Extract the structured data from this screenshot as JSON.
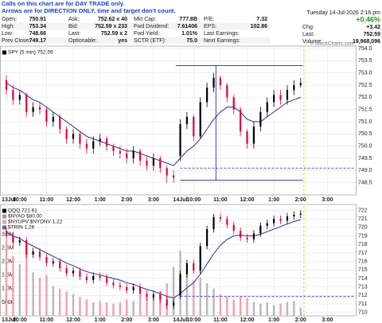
{
  "notes": [
    "Calls on this chart are for DAY TRADE only.",
    "Arrows are for DIRECTION ONLY, time and target don't count."
  ],
  "quote": {
    "date": "Tuesday 14-Jul-2026 2:16 pm",
    "pct_change": "+0.46%",
    "pct_color": "#1b9e1b",
    "grid": [
      [
        "Open:",
        "750.91",
        "Ask:",
        "752.62 x 40",
        "Mkt Cap:",
        "777.8B",
        "P/E:",
        "7.32"
      ],
      [
        "High:",
        "753.34",
        "Bid:",
        "752.59 x 233",
        "Fwd Dividend:",
        "7.61406",
        "EPS:",
        "102.86"
      ],
      [
        "Low:",
        "748.66",
        "Last:",
        "752.59 x 2",
        "Fwd Yield:",
        "1.01%",
        "Last Earnings:",
        null
      ],
      [
        "Prev Close:",
        "749.17",
        "Optionable:",
        "yes",
        "SCTR (ETF):",
        "75.0",
        "Next Earnings:",
        null
      ]
    ],
    "side": [
      [
        "Chg:",
        "+3.42"
      ],
      [
        "Last:",
        "752.59"
      ],
      [
        "Volume:",
        "19,968,096"
      ]
    ]
  },
  "watermark": "© StockCharts.com",
  "chart_data": [
    {
      "type": "candlestick",
      "legend": [
        {
          "name": "SPY (5 min) 752.59",
          "color": "#000000"
        }
      ],
      "x": [
        0,
        3,
        6,
        9,
        12,
        15,
        18,
        21,
        24,
        27,
        30,
        33,
        36,
        39,
        42,
        45,
        48,
        51,
        54,
        57,
        60,
        63,
        66,
        69,
        72,
        75,
        78,
        81,
        84,
        87,
        90,
        93,
        96,
        99,
        102,
        105,
        108,
        111,
        114,
        117,
        120,
        123,
        126,
        129,
        132
      ],
      "open": [
        752.7,
        752.3,
        751.9,
        752.1,
        751.4,
        751.6,
        751.5,
        751.0,
        751.2,
        750.7,
        750.3,
        750.5,
        750.1,
        749.9,
        750.2,
        750.3,
        750.0,
        749.8,
        749.7,
        749.5,
        749.8,
        749.4,
        749.2,
        749.5,
        749.1,
        748.8,
        749.6,
        750.9,
        751.2,
        750.4,
        751.8,
        752.4,
        752.8,
        752.5,
        752.0,
        751.5,
        750.6,
        750.1,
        750.8,
        751.4,
        751.8,
        752.1,
        751.9,
        752.3,
        752.5
      ],
      "high": [
        752.9,
        752.5,
        752.3,
        752.2,
        751.8,
        751.8,
        751.6,
        751.4,
        751.3,
        750.8,
        750.7,
        750.6,
        750.3,
        750.4,
        750.5,
        750.4,
        750.1,
        750.0,
        749.9,
        750.0,
        749.9,
        749.6,
        749.7,
        749.6,
        749.2,
        749.0,
        751.1,
        751.4,
        751.3,
        752.0,
        752.6,
        753.0,
        752.9,
        752.6,
        752.1,
        751.6,
        750.7,
        751.0,
        751.6,
        752.0,
        752.3,
        752.3,
        752.5,
        752.7,
        752.8
      ],
      "low": [
        752.1,
        751.7,
        751.7,
        751.2,
        751.2,
        751.3,
        750.8,
        750.8,
        750.5,
        750.1,
        750.1,
        749.9,
        749.7,
        749.7,
        750.0,
        749.8,
        749.6,
        749.5,
        749.3,
        749.3,
        749.2,
        749.0,
        749.0,
        748.9,
        748.5,
        748.5,
        749.4,
        750.7,
        750.2,
        750.3,
        751.6,
        752.2,
        752.3,
        751.8,
        751.3,
        750.4,
        749.9,
        749.9,
        750.6,
        751.2,
        751.6,
        751.7,
        751.7,
        752.1,
        752.4
      ],
      "close": [
        752.3,
        751.9,
        752.1,
        751.4,
        751.6,
        751.5,
        751.0,
        751.2,
        750.7,
        750.3,
        750.5,
        750.1,
        749.9,
        750.2,
        750.3,
        750.0,
        749.8,
        749.7,
        749.5,
        749.8,
        749.4,
        749.2,
        749.5,
        749.1,
        748.8,
        748.7,
        750.9,
        751.2,
        750.4,
        751.8,
        752.4,
        752.8,
        752.5,
        752.0,
        751.5,
        750.6,
        750.1,
        750.8,
        751.4,
        751.8,
        752.1,
        751.9,
        752.3,
        752.5,
        752.59
      ],
      "up_color": "#000000",
      "down_color": "#e0003c",
      "overlays": [
        {
          "type": "line",
          "color": "#2b2b9a",
          "values": [
            752.6,
            752.4,
            752.3,
            752.1,
            751.9,
            751.8,
            751.6,
            751.4,
            751.2,
            751.0,
            750.8,
            750.6,
            750.4,
            750.3,
            750.2,
            750.1,
            750.0,
            749.9,
            749.8,
            749.8,
            749.7,
            749.6,
            749.5,
            749.4,
            749.3,
            749.2,
            749.5,
            749.8,
            750.0,
            750.3,
            750.7,
            751.1,
            751.4,
            751.6,
            751.6,
            751.4,
            751.1,
            751.0,
            751.0,
            751.2,
            751.4,
            751.6,
            751.8,
            751.9,
            752.0
          ]
        }
      ],
      "xlim": [
        0,
        156
      ],
      "xticks": [
        {
          "value": 0,
          "label": "13Jul"
        },
        {
          "value": 6,
          "label": "10:00"
        },
        {
          "value": 18,
          "label": "11:00"
        },
        {
          "value": 30,
          "label": "12:00"
        },
        {
          "value": 42,
          "label": "1:00"
        },
        {
          "value": 54,
          "label": "2:00"
        },
        {
          "value": 66,
          "label": "3:00"
        },
        {
          "value": 78,
          "label": "14Jul"
        },
        {
          "value": 84,
          "label": "10:00"
        },
        {
          "value": 96,
          "label": "11:00"
        },
        {
          "value": 108,
          "label": "12:00"
        },
        {
          "value": 120,
          "label": "1:00"
        },
        {
          "value": 132,
          "label": "2:00"
        },
        {
          "value": 144,
          "label": "3:00"
        }
      ],
      "ylim": [
        748.0,
        754.1
      ],
      "yticks": [
        {
          "value": 748.5,
          "label": "748.5"
        },
        {
          "value": 749,
          "label": "749.0"
        },
        749.5,
        {
          "value": 750,
          "label": "750.0"
        },
        750.5,
        {
          "value": 751,
          "label": "751.0"
        },
        751.5,
        {
          "value": 752,
          "label": "752.0"
        },
        752.5,
        {
          "value": 753,
          "label": "753.0"
        },
        753.5,
        {
          "value": 754,
          "label": "754.0"
        }
      ],
      "grid": true,
      "hlines": [
        {
          "value": 753.3,
          "from": 76,
          "to": 133,
          "color": "#2b2b9a",
          "dashed": false
        },
        {
          "value": 748.6,
          "from": 78,
          "to": 133,
          "color": "#2b2b9a",
          "dashed": false
        },
        {
          "value": 749.1,
          "from": 78,
          "to": 156,
          "color": "#3a3aff",
          "dashed": true
        }
      ],
      "vlines": [
        {
          "value": 94,
          "from": 748.6,
          "to": 753.3,
          "color": "#2b2b9a",
          "dashed": false
        },
        {
          "value": 133.5,
          "color": "#f2c200",
          "dashed": true
        }
      ]
    },
    {
      "type": "candlestick",
      "legend": [
        {
          "name": "QQQ 721.61",
          "color": "#000000"
        },
        {
          "name": "$NYAD $80.00",
          "color": "#999999"
        },
        {
          "name": "$NYUPV:$NYDNV 1.22",
          "color": "#e8a0b0"
        },
        {
          "name": "$TRIN 1.26",
          "color": "#6060c0"
        }
      ],
      "x": [
        0,
        3,
        6,
        9,
        12,
        15,
        18,
        21,
        24,
        27,
        30,
        33,
        36,
        39,
        42,
        45,
        48,
        51,
        54,
        57,
        60,
        63,
        66,
        69,
        72,
        75,
        78,
        81,
        84,
        87,
        90,
        93,
        96,
        99,
        102,
        105,
        108,
        111,
        114,
        117,
        120,
        123,
        126,
        129,
        132
      ],
      "open": [
        719.6,
        719.0,
        718.2,
        718.5,
        716.8,
        717.2,
        716.5,
        715.8,
        716.0,
        715.2,
        714.6,
        714.9,
        714.2,
        713.8,
        714.3,
        714.1,
        713.5,
        713.2,
        713.0,
        712.6,
        713.0,
        712.2,
        711.8,
        712.1,
        711.5,
        710.8,
        712.0,
        714.5,
        715.8,
        714.9,
        717.8,
        719.8,
        721.2,
        721.0,
        720.3,
        719.6,
        718.8,
        718.6,
        719.3,
        720.2,
        720.5,
        721.0,
        720.8,
        721.3,
        721.5
      ],
      "high": [
        720.0,
        719.4,
        718.9,
        718.9,
        717.6,
        717.6,
        716.9,
        716.4,
        716.4,
        715.6,
        715.3,
        715.3,
        714.6,
        714.7,
        714.7,
        714.5,
        713.9,
        713.6,
        713.4,
        713.4,
        713.4,
        712.6,
        712.5,
        712.5,
        711.9,
        711.6,
        714.9,
        716.2,
        716.2,
        718.2,
        720.2,
        721.6,
        721.6,
        721.4,
        720.7,
        720.0,
        719.2,
        719.7,
        720.6,
        720.9,
        721.4,
        721.4,
        721.7,
        721.9,
        722.0
      ],
      "low": [
        718.6,
        717.8,
        717.8,
        716.4,
        716.4,
        716.1,
        715.4,
        715.4,
        714.8,
        714.2,
        714.2,
        713.8,
        713.4,
        713.4,
        713.7,
        713.1,
        712.8,
        712.6,
        712.2,
        712.2,
        711.8,
        711.4,
        711.4,
        711.1,
        710.4,
        710.4,
        711.6,
        714.1,
        714.5,
        714.5,
        717.4,
        719.4,
        720.6,
        719.9,
        719.2,
        718.4,
        718.2,
        718.2,
        718.9,
        719.8,
        720.1,
        720.4,
        720.4,
        720.9,
        721.1
      ],
      "close": [
        719.0,
        718.2,
        718.5,
        716.8,
        717.2,
        716.5,
        715.8,
        716.0,
        715.2,
        714.6,
        714.9,
        714.2,
        713.8,
        714.3,
        714.1,
        713.5,
        713.2,
        713.0,
        712.6,
        713.0,
        712.2,
        711.8,
        712.1,
        711.5,
        710.8,
        711.2,
        714.5,
        715.8,
        714.9,
        717.8,
        719.8,
        721.2,
        721.0,
        720.3,
        719.6,
        718.8,
        718.6,
        719.3,
        720.2,
        720.5,
        721.0,
        720.8,
        721.3,
        721.5,
        721.61
      ],
      "up_color": "#000000",
      "down_color": "#e0003c",
      "overlays": [
        {
          "type": "line",
          "color": "#2b2b9a",
          "values": [
            719.4,
            719.0,
            718.7,
            718.2,
            717.8,
            717.4,
            717.0,
            716.6,
            716.2,
            715.8,
            715.5,
            715.1,
            714.8,
            714.6,
            714.4,
            714.2,
            714.0,
            713.8,
            713.5,
            713.3,
            713.0,
            712.7,
            712.5,
            712.2,
            711.9,
            711.7,
            712.2,
            712.9,
            713.5,
            714.5,
            715.7,
            716.9,
            717.9,
            718.6,
            719.0,
            719.1,
            719.0,
            719.0,
            719.2,
            719.5,
            719.8,
            720.1,
            720.4,
            720.7,
            720.9
          ]
        }
      ],
      "volume": {
        "axis": "y2",
        "up_color": "#b8b8b8",
        "down_color": "#f2a0b0",
        "values": [
          2800000,
          2200000,
          1900000,
          2500000,
          1600000,
          1400000,
          1500000,
          1100000,
          1000000,
          900000,
          800000,
          700000,
          600000,
          500000,
          550000,
          500000,
          450000,
          500000,
          600000,
          550000,
          700000,
          650000,
          800000,
          900000,
          1200000,
          1800000,
          2400000,
          1700000,
          1300000,
          1400000,
          1200000,
          1000000,
          800000,
          700000,
          600000,
          700000,
          650000,
          500000,
          450000,
          500000,
          400000,
          450000,
          500000,
          550000,
          300000
        ]
      },
      "xlim": [
        0,
        156
      ],
      "xticks": [
        {
          "value": 0,
          "label": "13Jul"
        },
        {
          "value": 6,
          "label": "10:00"
        },
        {
          "value": 18,
          "label": "11:00"
        },
        {
          "value": 30,
          "label": "12:00"
        },
        {
          "value": 42,
          "label": "1:00"
        },
        {
          "value": 54,
          "label": "2:00"
        },
        {
          "value": 66,
          "label": "3:00"
        },
        {
          "value": 78,
          "label": "14Jul"
        },
        {
          "value": 84,
          "label": "10:00"
        },
        {
          "value": 96,
          "label": "11:00"
        },
        {
          "value": 108,
          "label": "12:00"
        },
        {
          "value": 120,
          "label": "1:00"
        },
        {
          "value": 132,
          "label": "2:00"
        },
        {
          "value": 144,
          "label": "3:00"
        }
      ],
      "ylim": [
        709.6,
        722.7
      ],
      "yticks": [
        710,
        711,
        712,
        713,
        714,
        715,
        716,
        717,
        718,
        719,
        720,
        721,
        722
      ],
      "y2lim": [
        0,
        4100000
      ],
      "y2ticks": [
        {
          "value": 500000,
          "label": "500K"
        },
        {
          "value": 1000000,
          "label": "1.0M"
        },
        {
          "value": 1500000,
          "label": "1.5M"
        },
        {
          "value": 2000000,
          "label": "2.0M"
        },
        {
          "value": 2500000,
          "label": "2.5M"
        },
        {
          "value": 3000000,
          "label": "3.0M"
        }
      ],
      "grid": true,
      "hlines": [
        {
          "value": 711.9,
          "from": 78,
          "to": 156,
          "color": "#3a3aff",
          "dashed": true
        }
      ],
      "vlines": [
        {
          "value": 133.5,
          "color": "#f2c200",
          "dashed": true
        }
      ]
    }
  ]
}
